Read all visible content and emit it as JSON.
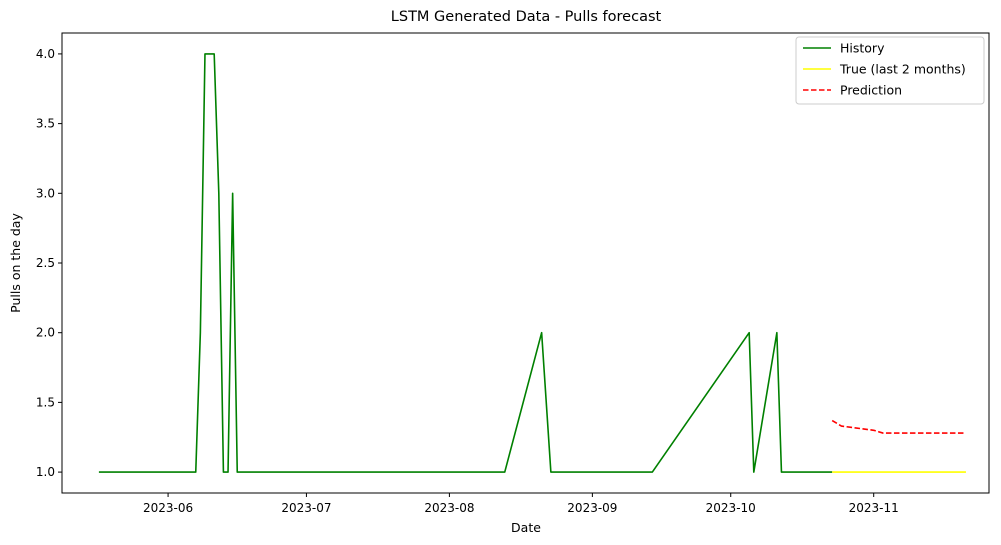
{
  "chart_data": {
    "type": "line",
    "title": "LSTM Generated Data - Pulls forecast",
    "xlabel": "Date",
    "ylabel": "Pulls on the day",
    "xlim": [
      "2023-05-09",
      "2023-11-26"
    ],
    "ylim": [
      0.85,
      4.15
    ],
    "x_ticks": [
      "2023-06-01",
      "2023-07-01",
      "2023-08-01",
      "2023-09-01",
      "2023-10-01",
      "2023-11-01"
    ],
    "x_tick_labels": [
      "2023-06",
      "2023-07",
      "2023-08",
      "2023-09",
      "2023-10",
      "2023-11"
    ],
    "y_ticks": [
      1.0,
      1.5,
      2.0,
      2.5,
      3.0,
      3.5,
      4.0
    ],
    "y_tick_labels": [
      "1.0",
      "1.5",
      "2.0",
      "2.5",
      "3.0",
      "3.5",
      "4.0"
    ],
    "legend_position": "top-right",
    "series": [
      {
        "name": "History",
        "color": "#008000",
        "style": "solid",
        "x": [
          "2023-05-17",
          "2023-06-07",
          "2023-06-08",
          "2023-06-09",
          "2023-06-10",
          "2023-06-11",
          "2023-06-12",
          "2023-06-13",
          "2023-06-14",
          "2023-06-15",
          "2023-06-16",
          "2023-06-17",
          "2023-08-13",
          "2023-08-21",
          "2023-08-23",
          "2023-09-14",
          "2023-10-05",
          "2023-10-06",
          "2023-10-11",
          "2023-10-12",
          "2023-10-23"
        ],
        "y": [
          1,
          1,
          2,
          4,
          4,
          4,
          3,
          1,
          1,
          3,
          1,
          1,
          1,
          2,
          1,
          1,
          2,
          1,
          2,
          1,
          1
        ]
      },
      {
        "name": "True (last 2 months)",
        "color": "#ffff00",
        "style": "solid",
        "x": [
          "2023-10-23",
          "2023-11-21"
        ],
        "y": [
          1,
          1
        ]
      },
      {
        "name": "Prediction",
        "color": "#ff0000",
        "style": "dashed",
        "x": [
          "2023-10-23",
          "2023-10-25",
          "2023-11-01",
          "2023-11-03",
          "2023-11-21"
        ],
        "y": [
          1.37,
          1.33,
          1.3,
          1.28,
          1.28
        ]
      }
    ]
  }
}
